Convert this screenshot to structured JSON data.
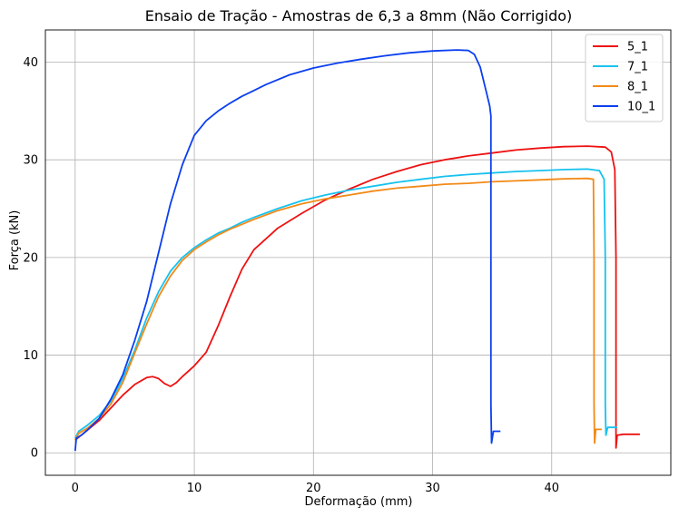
{
  "chart_data": {
    "type": "line",
    "title": "Ensaio de Tração - Amostras de 6,3 a 8mm (Não Corrigido)",
    "xlabel": "Deformação (mm)",
    "ylabel": "Força (kN)",
    "xlim": [
      -2.5,
      50
    ],
    "ylim": [
      -2.3,
      43.3
    ],
    "xticks": [
      0,
      10,
      20,
      30,
      40
    ],
    "yticks": [
      0,
      10,
      20,
      30,
      40
    ],
    "grid": true,
    "legend_position": "top-right",
    "series": [
      {
        "name": "5_1",
        "color": "#ee1111",
        "points": [
          [
            0,
            1.3
          ],
          [
            0.5,
            1.8
          ],
          [
            1,
            2.3
          ],
          [
            2,
            3.3
          ],
          [
            3,
            4.6
          ],
          [
            4,
            5.9
          ],
          [
            5,
            7.0
          ],
          [
            6,
            7.7
          ],
          [
            6.5,
            7.8
          ],
          [
            7,
            7.6
          ],
          [
            7.5,
            7.1
          ],
          [
            8,
            6.8
          ],
          [
            8.5,
            7.2
          ],
          [
            9,
            7.8
          ],
          [
            10,
            8.9
          ],
          [
            11,
            10.3
          ],
          [
            12,
            13.0
          ],
          [
            13,
            16.0
          ],
          [
            14,
            18.8
          ],
          [
            15,
            20.8
          ],
          [
            17,
            23.0
          ],
          [
            19,
            24.5
          ],
          [
            21,
            25.9
          ],
          [
            23,
            27.0
          ],
          [
            25,
            28.0
          ],
          [
            27,
            28.8
          ],
          [
            29,
            29.5
          ],
          [
            31,
            30.0
          ],
          [
            33,
            30.4
          ],
          [
            35,
            30.7
          ],
          [
            37,
            31.0
          ],
          [
            39,
            31.2
          ],
          [
            41,
            31.35
          ],
          [
            43,
            31.4
          ],
          [
            44.5,
            31.3
          ],
          [
            45,
            30.8
          ],
          [
            45.3,
            29.0
          ],
          [
            45.4,
            20.0
          ],
          [
            45.4,
            10.0
          ],
          [
            45.4,
            0.5
          ],
          [
            45.5,
            1.8
          ],
          [
            46,
            1.9
          ],
          [
            47.4,
            1.9
          ]
        ]
      },
      {
        "name": "7_1",
        "color": "#17c2ee",
        "points": [
          [
            0,
            1.5
          ],
          [
            0.3,
            2.2
          ],
          [
            1,
            2.8
          ],
          [
            2,
            3.8
          ],
          [
            3,
            5.3
          ],
          [
            4,
            7.6
          ],
          [
            5,
            10.5
          ],
          [
            6,
            13.8
          ],
          [
            7,
            16.5
          ],
          [
            8,
            18.6
          ],
          [
            9,
            20.0
          ],
          [
            10,
            21.0
          ],
          [
            11,
            21.8
          ],
          [
            12,
            22.5
          ],
          [
            13,
            23.0
          ],
          [
            14,
            23.6
          ],
          [
            15,
            24.1
          ],
          [
            17,
            25.0
          ],
          [
            19,
            25.8
          ],
          [
            21,
            26.4
          ],
          [
            23,
            26.9
          ],
          [
            25,
            27.3
          ],
          [
            27,
            27.7
          ],
          [
            29,
            28.0
          ],
          [
            31,
            28.3
          ],
          [
            33,
            28.5
          ],
          [
            35,
            28.65
          ],
          [
            37,
            28.8
          ],
          [
            39,
            28.9
          ],
          [
            41,
            29.0
          ],
          [
            43,
            29.05
          ],
          [
            44,
            28.9
          ],
          [
            44.4,
            28.0
          ],
          [
            44.5,
            20.0
          ],
          [
            44.5,
            5.0
          ],
          [
            44.55,
            1.8
          ],
          [
            44.7,
            2.6
          ],
          [
            45.5,
            2.6
          ]
        ]
      },
      {
        "name": "8_1",
        "color": "#f28a17",
        "points": [
          [
            0,
            1.3
          ],
          [
            0.3,
            2.0
          ],
          [
            1,
            2.5
          ],
          [
            2,
            3.5
          ],
          [
            3,
            5.0
          ],
          [
            4,
            7.2
          ],
          [
            5,
            10.2
          ],
          [
            6,
            13.2
          ],
          [
            7,
            16.0
          ],
          [
            8,
            18.1
          ],
          [
            9,
            19.7
          ],
          [
            10,
            20.8
          ],
          [
            11,
            21.6
          ],
          [
            12,
            22.3
          ],
          [
            13,
            22.9
          ],
          [
            14,
            23.4
          ],
          [
            15,
            23.9
          ],
          [
            17,
            24.8
          ],
          [
            19,
            25.5
          ],
          [
            21,
            26.0
          ],
          [
            23,
            26.4
          ],
          [
            25,
            26.8
          ],
          [
            27,
            27.1
          ],
          [
            29,
            27.3
          ],
          [
            31,
            27.5
          ],
          [
            33,
            27.6
          ],
          [
            35,
            27.75
          ],
          [
            37,
            27.85
          ],
          [
            39,
            27.95
          ],
          [
            41,
            28.05
          ],
          [
            43,
            28.1
          ],
          [
            43.5,
            28.0
          ],
          [
            43.55,
            20.0
          ],
          [
            43.55,
            5.0
          ],
          [
            43.6,
            1.0
          ],
          [
            43.7,
            2.4
          ],
          [
            44.2,
            2.4
          ]
        ]
      },
      {
        "name": "10_1",
        "color": "#0a3ff0",
        "points": [
          [
            0,
            0.2
          ],
          [
            0.1,
            1.5
          ],
          [
            0.5,
            1.8
          ],
          [
            1,
            2.3
          ],
          [
            2,
            3.5
          ],
          [
            3,
            5.5
          ],
          [
            4,
            8.0
          ],
          [
            5,
            11.5
          ],
          [
            6,
            15.5
          ],
          [
            7,
            20.5
          ],
          [
            8,
            25.5
          ],
          [
            9,
            29.5
          ],
          [
            10,
            32.5
          ],
          [
            11,
            34.0
          ],
          [
            12,
            35.0
          ],
          [
            13,
            35.8
          ],
          [
            14,
            36.5
          ],
          [
            15,
            37.1
          ],
          [
            16,
            37.7
          ],
          [
            18,
            38.7
          ],
          [
            20,
            39.4
          ],
          [
            22,
            39.9
          ],
          [
            24,
            40.3
          ],
          [
            26,
            40.65
          ],
          [
            28,
            40.95
          ],
          [
            30,
            41.15
          ],
          [
            32,
            41.25
          ],
          [
            33,
            41.2
          ],
          [
            33.5,
            40.8
          ],
          [
            34,
            39.5
          ],
          [
            34.5,
            37.0
          ],
          [
            34.8,
            35.5
          ],
          [
            34.9,
            34.5
          ],
          [
            34.9,
            20.0
          ],
          [
            34.9,
            5.0
          ],
          [
            34.95,
            1.0
          ],
          [
            35.1,
            2.2
          ],
          [
            35.7,
            2.2
          ]
        ]
      }
    ]
  }
}
